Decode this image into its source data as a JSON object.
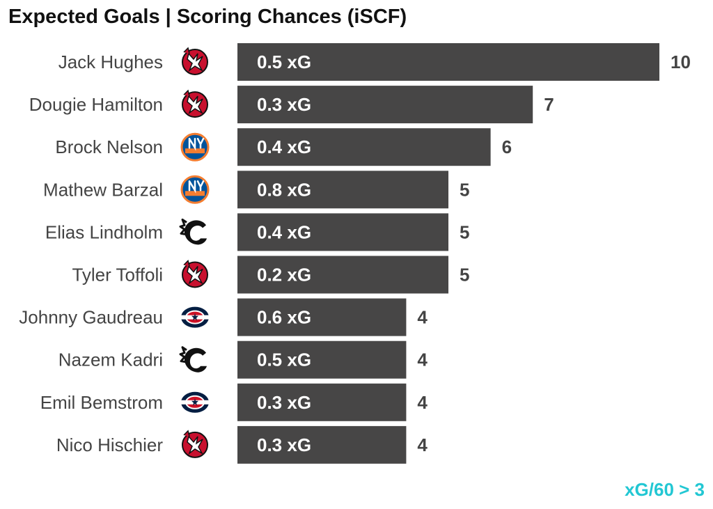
{
  "title": "Expected Goals | Scoring Chances (iSCF)",
  "footnote": "xG/60 > 3",
  "colors": {
    "bar": "#474646",
    "footnote": "#22c7d3",
    "devils_red": "#c8102e",
    "islanders_blue": "#00539b",
    "islanders_orange": "#f47d30",
    "blue_jackets_navy": "#041e42",
    "blue_jackets_red": "#ce1126"
  },
  "chart_data": {
    "type": "bar",
    "orientation": "horizontal",
    "title": "Expected Goals | Scoring Chances (iSCF)",
    "xlabel": "",
    "ylabel": "",
    "xlim": [
      0,
      10
    ],
    "grid": false,
    "legend": "none",
    "categories": [
      "Jack Hughes",
      "Dougie Hamilton",
      "Brock Nelson",
      "Mathew Barzal",
      "Elias Lindholm",
      "Tyler Toffoli",
      "Johnny Gaudreau",
      "Nazem Kadri",
      "Emil Bemstrom",
      "Nico Hischier"
    ],
    "values": [
      10,
      7,
      6,
      5,
      5,
      5,
      4,
      4,
      4,
      4
    ],
    "bar_labels": [
      "0.5 xG",
      "0.3 xG",
      "0.4 xG",
      "0.8 xG",
      "0.4 xG",
      "0.2 xG",
      "0.6 xG",
      "0.5 xG",
      "0.3 xG",
      "0.3 xG"
    ],
    "team_logos": [
      "devils-logo",
      "devils-logo",
      "islanders-logo",
      "islanders-logo",
      "flames-logo",
      "devils-logo",
      "blue-jackets-logo",
      "flames-logo",
      "blue-jackets-logo",
      "devils-logo"
    ]
  }
}
